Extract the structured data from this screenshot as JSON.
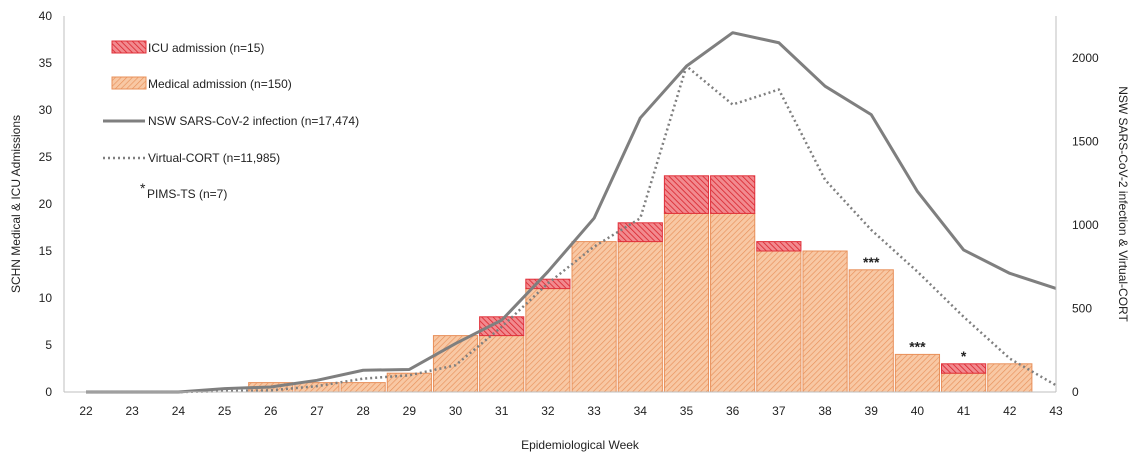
{
  "chart_data": {
    "type": "bar",
    "x_label": "Epidemiological Week",
    "y_label_left": "SCHN Medical & ICU Admissions",
    "y_label_right": "NSW SARS-CoV-2 infection & Virtual-CORT",
    "ylim_left": [
      0,
      40
    ],
    "yticks_left": [
      "0",
      "5",
      "10",
      "15",
      "20",
      "25",
      "30",
      "35",
      "40"
    ],
    "ylim_right": [
      0,
      2250
    ],
    "yticks_right": [
      "0",
      "500",
      "1000",
      "1500",
      "2000"
    ],
    "categories": [
      "22",
      "23",
      "24",
      "25",
      "26",
      "27",
      "28",
      "29",
      "30",
      "31",
      "32",
      "33",
      "34",
      "35",
      "36",
      "37",
      "38",
      "39",
      "40",
      "41",
      "42",
      "43"
    ],
    "stacked": true,
    "series": [
      {
        "name": "Medical admission (n=150)",
        "kind": "bar",
        "axis": "left",
        "color": "#F4B183",
        "values": [
          0,
          0,
          0,
          0,
          1,
          1,
          1,
          2,
          6,
          6,
          11,
          16,
          16,
          19,
          19,
          15,
          15,
          13,
          4,
          2,
          3,
          0
        ]
      },
      {
        "name": "ICU admission (n=15)",
        "kind": "bar",
        "axis": "left",
        "color": "#E8474F",
        "values": [
          0,
          0,
          0,
          0,
          0,
          0,
          0,
          0,
          0,
          2,
          1,
          0,
          2,
          4,
          4,
          1,
          0,
          0,
          0,
          1,
          0,
          0
        ]
      },
      {
        "name": "NSW SARS-CoV-2 infection (n=17,474)",
        "kind": "line",
        "axis": "right",
        "color": "#7F7F7F",
        "style": "solid",
        "values": [
          0,
          0,
          0,
          20,
          30,
          70,
          130,
          135,
          290,
          430,
          720,
          1040,
          1640,
          1950,
          2150,
          2090,
          1830,
          1660,
          1200,
          850,
          710,
          620
        ]
      },
      {
        "name": "Virtual-CORT (n=11,985)",
        "kind": "line",
        "axis": "right",
        "color": "#7F7F7F",
        "style": "dotted",
        "values": [
          0,
          0,
          0,
          5,
          10,
          35,
          80,
          100,
          160,
          390,
          650,
          870,
          1040,
          1950,
          1720,
          1810,
          1270,
          970,
          720,
          450,
          200,
          40
        ]
      }
    ],
    "annotations": [
      {
        "x": "39",
        "text": "***"
      },
      {
        "x": "40",
        "text": "***"
      },
      {
        "x": "41",
        "text": "*"
      }
    ],
    "legend": {
      "position": "top-left",
      "items": [
        {
          "label": "ICU admission (n=15)",
          "swatch": "icu-box"
        },
        {
          "label": "Medical admission (n=150)",
          "swatch": "medical-box"
        },
        {
          "label": "NSW SARS-CoV-2 infection (n=17,474)",
          "swatch": "solid-line"
        },
        {
          "label": "Virtual-CORT (n=11,985)",
          "swatch": "dotted-line"
        },
        {
          "label": "PIMS-TS (n=7)",
          "marker": "*",
          "swatch": "asterisk"
        }
      ]
    },
    "grid": false
  }
}
